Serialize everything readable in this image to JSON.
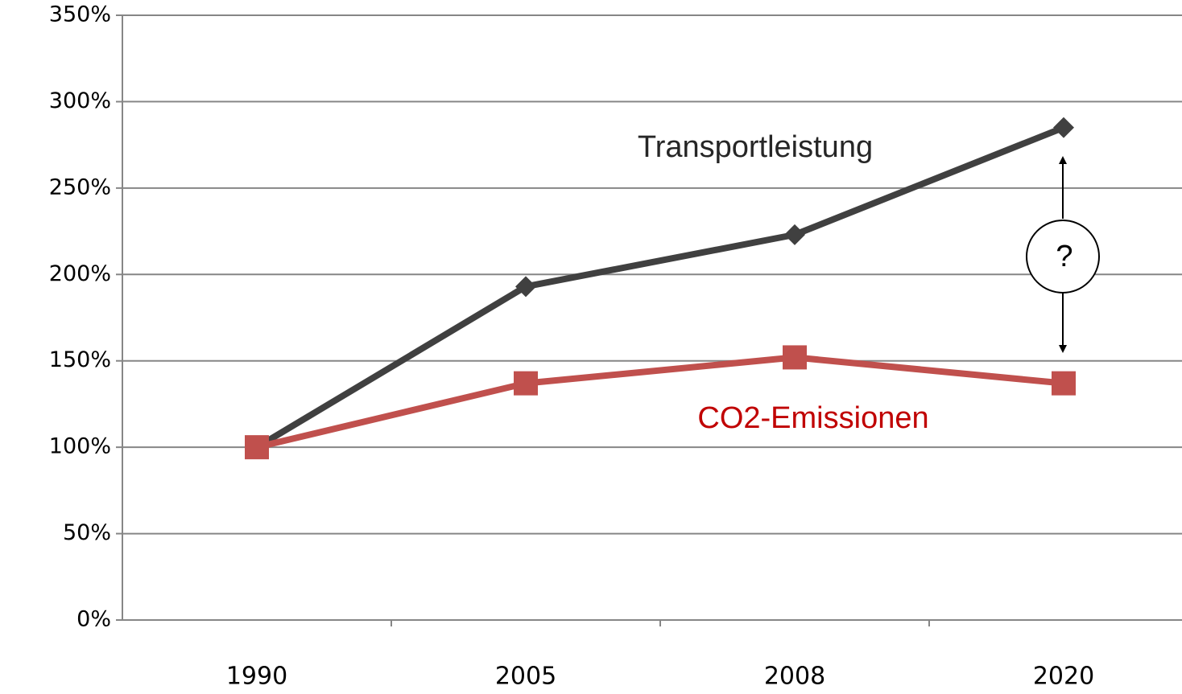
{
  "chart_data": {
    "type": "line",
    "categories": [
      "1990",
      "2005",
      "2008",
      "2020"
    ],
    "series": [
      {
        "name": "Transportleistung",
        "color": "#404040",
        "marker": "diamond",
        "values": [
          100,
          193,
          223,
          285
        ]
      },
      {
        "name": "CO2-Emissionen",
        "color": "#c0504d",
        "marker": "square",
        "values": [
          100,
          137,
          152,
          137
        ]
      }
    ],
    "annotations": [
      "?"
    ],
    "ylim": [
      0,
      350
    ],
    "yticks": [
      {
        "value": 0,
        "label": "0%"
      },
      {
        "value": 50,
        "label": "50%"
      },
      {
        "value": 100,
        "label": "100%"
      },
      {
        "value": 150,
        "label": "150%"
      },
      {
        "value": 200,
        "label": "200%"
      },
      {
        "value": 250,
        "label": "250%"
      },
      {
        "value": 300,
        "label": "300%"
      },
      {
        "value": 350,
        "label": "350%"
      }
    ],
    "grid": true
  }
}
